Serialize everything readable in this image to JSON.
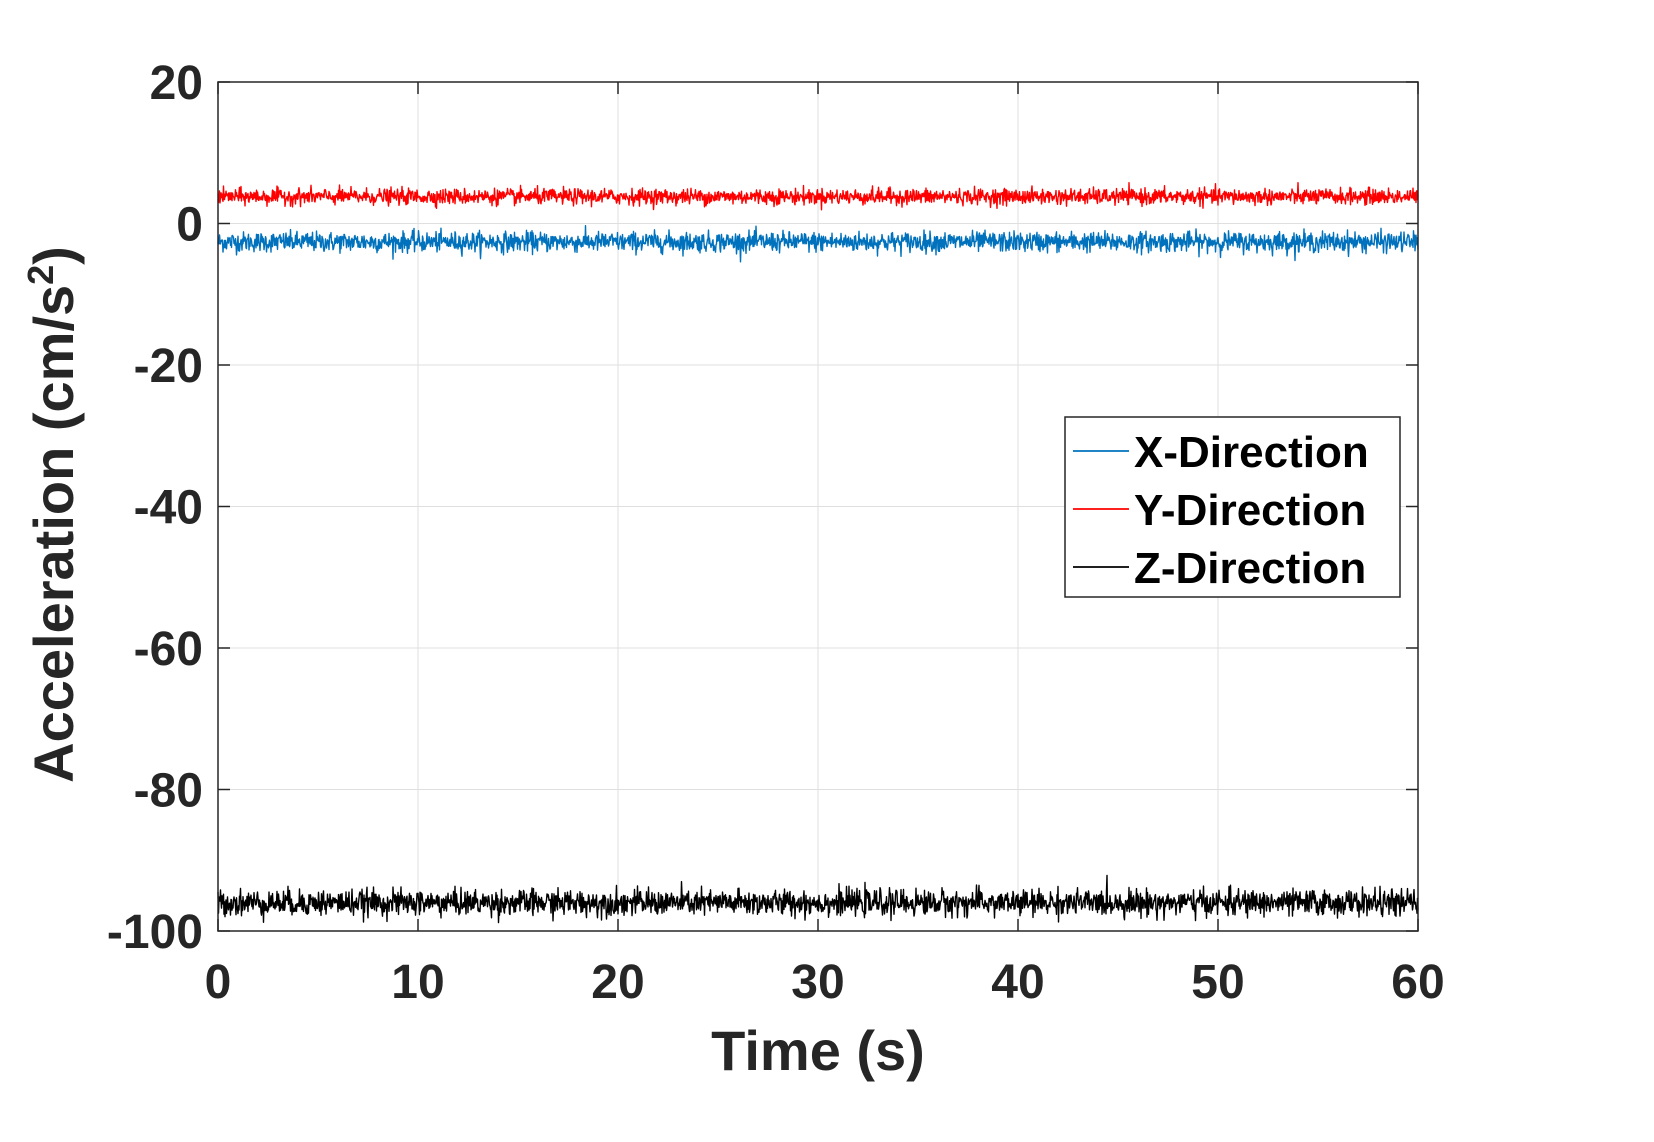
{
  "chart_data": {
    "type": "line",
    "title": "",
    "xlabel": "Time (s)",
    "ylabel": {
      "main": "Acceleration (cm/s",
      "superscript": "2",
      "close": ")"
    },
    "xlim": [
      0,
      60
    ],
    "ylim": [
      -100,
      20
    ],
    "xticks": [
      0,
      10,
      20,
      30,
      40,
      50,
      60
    ],
    "yticks": [
      20,
      0,
      -20,
      -40,
      -60,
      -80,
      -100
    ],
    "xtick_labels": [
      "0",
      "10",
      "20",
      "30",
      "40",
      "50",
      "60"
    ],
    "ytick_labels": [
      "20",
      "0",
      "-20",
      "-40",
      "-60",
      "-80",
      "-100"
    ],
    "grid": true,
    "legend_position": "right",
    "series": [
      {
        "name": "X-Direction",
        "color": "#0072bd",
        "mean": -2.6,
        "noise_std": 0.7,
        "x_range": [
          0,
          60
        ]
      },
      {
        "name": "Y-Direction",
        "color": "#ff0000",
        "mean": 3.8,
        "noise_std": 0.55,
        "x_range": [
          0,
          60
        ]
      },
      {
        "name": "Z-Direction",
        "color": "#000000",
        "mean": -96.0,
        "noise_std": 0.9,
        "x_range": [
          0,
          60
        ]
      }
    ]
  }
}
